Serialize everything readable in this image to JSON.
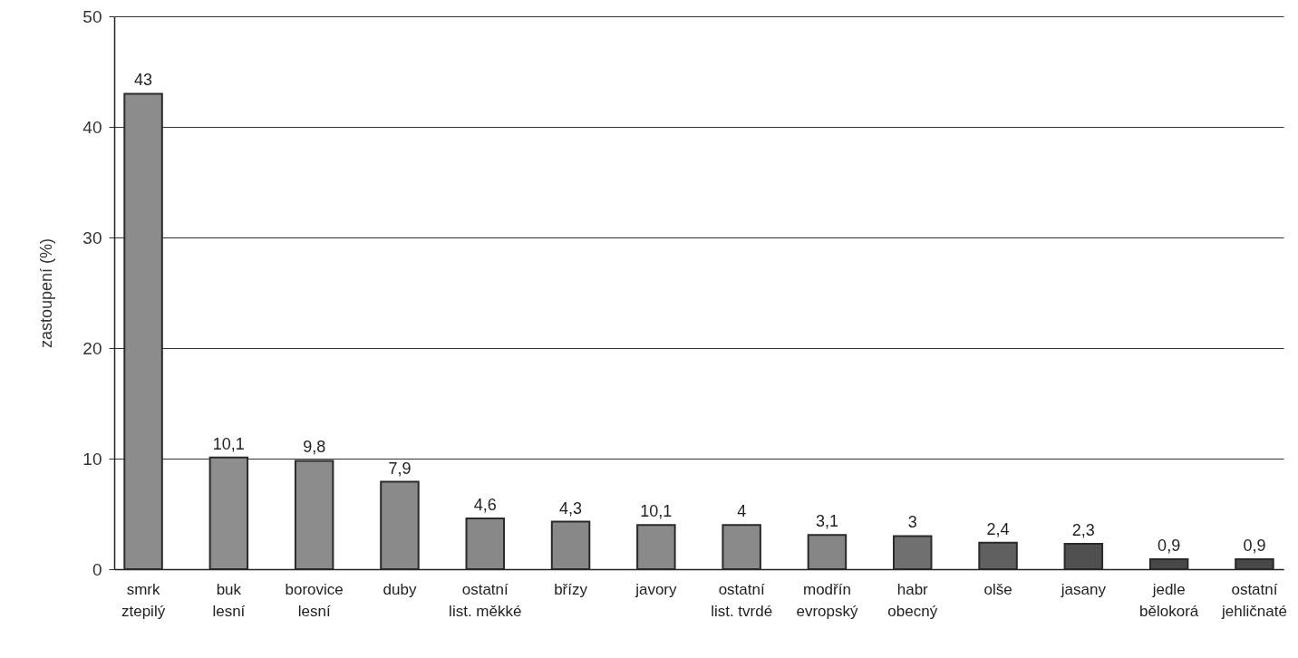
{
  "chart_data": {
    "type": "bar",
    "ylabel": "zastoupení (%)",
    "categories": [
      "smrk\nztepilý",
      "buk\nlesní",
      "borovice\nlesní",
      "duby",
      "ostatní\nlist. měkké",
      "břízy",
      "javory",
      "ostatní\nlist. tvrdé",
      "modřín\nevropský",
      "habr\nobecný",
      "olše",
      "jasany",
      "jedle\nbělokorá",
      "ostatní\njehličnaté"
    ],
    "values": [
      43,
      10.1,
      9.8,
      7.9,
      4.6,
      4.3,
      4,
      4,
      3.1,
      3,
      2.4,
      2.3,
      0.9,
      0.9
    ],
    "value_labels": [
      "43",
      "10,1",
      "9,8",
      "7,9",
      "4,6",
      "4,3",
      null,
      "4",
      "3,1",
      "3",
      "2,4",
      "2,3",
      "0,9",
      "0,9"
    ],
    "annotations": [
      {
        "text": "10,1",
        "x": "javory",
        "y": 4
      }
    ],
    "colors": [
      "#8c8c8c",
      "#8e8e8e",
      "#8c8c8c",
      "#8a8a8a",
      "#888888",
      "#888888",
      "#8a8a8a",
      "#8a8a8a",
      "#868686",
      "#707070",
      "#606060",
      "#505050",
      "#484848",
      "#484848"
    ],
    "ylim": [
      0,
      50
    ],
    "yticks": [
      0,
      10,
      20,
      30,
      40,
      50
    ],
    "grid": "y"
  }
}
